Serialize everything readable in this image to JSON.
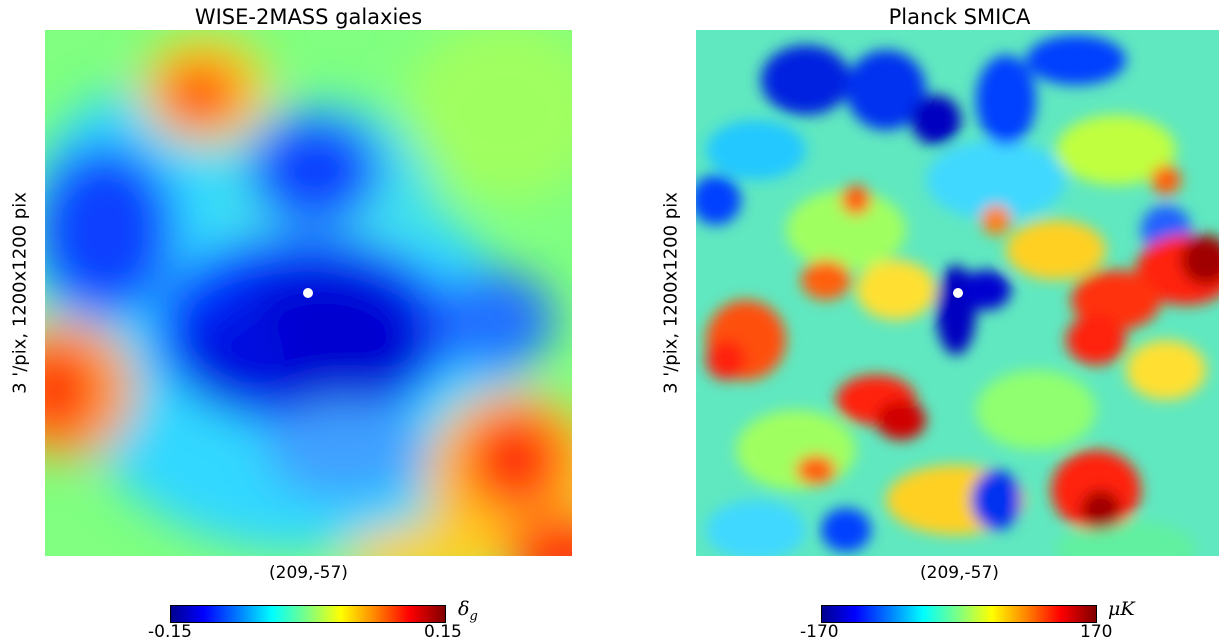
{
  "panels": {
    "left": {
      "title": "WISE-2MASS galaxies",
      "side_label": "3 '/pix,   1200x1200 pix",
      "coordinates": "(209,-57)",
      "colorbar": {
        "min": "-0.15",
        "max": "0.15",
        "unit": "δ",
        "unit_sub": "g"
      },
      "marker": "center-point"
    },
    "right": {
      "title": "Planck SMICA",
      "side_label": "3 '/pix,   1200x1200 pix",
      "coordinates": "(209,-57)",
      "colorbar": {
        "min": "-170",
        "max": "170",
        "unit": "μK"
      },
      "marker": "center-point"
    }
  },
  "colormap": [
    "#00008f",
    "#0000ff",
    "#0080ff",
    "#00ffff",
    "#80ff80",
    "#ffff00",
    "#ff8000",
    "#ff0000",
    "#800000"
  ]
}
